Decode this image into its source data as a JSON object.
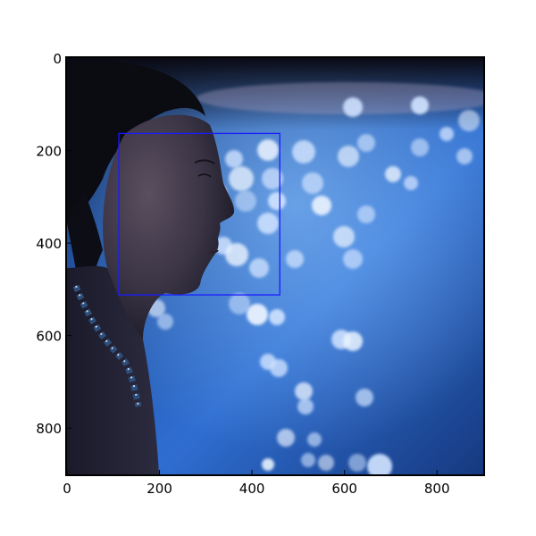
{
  "plot": {
    "x_ticks": [
      "0",
      "200",
      "400",
      "600",
      "800"
    ],
    "y_ticks": [
      "0",
      "200",
      "400",
      "600",
      "800"
    ],
    "x_range": [
      0,
      900
    ],
    "y_range": [
      0,
      900
    ]
  },
  "photo": {
    "subject": "woman-profile-facing-right",
    "background": "pool-water-bokeh",
    "box_color": "#1a1aff"
  },
  "annotation": {
    "box": {
      "x0": 112,
      "y0": 163,
      "x1": 460,
      "y1": 512
    }
  },
  "colors": {
    "frame": "#000000",
    "water_deep": "#1f4f9a",
    "water_light": "#7fb8ff",
    "skin_shadow": "#2a2a3c",
    "skin_light": "#5c5260",
    "hair": "#0b0b12"
  }
}
